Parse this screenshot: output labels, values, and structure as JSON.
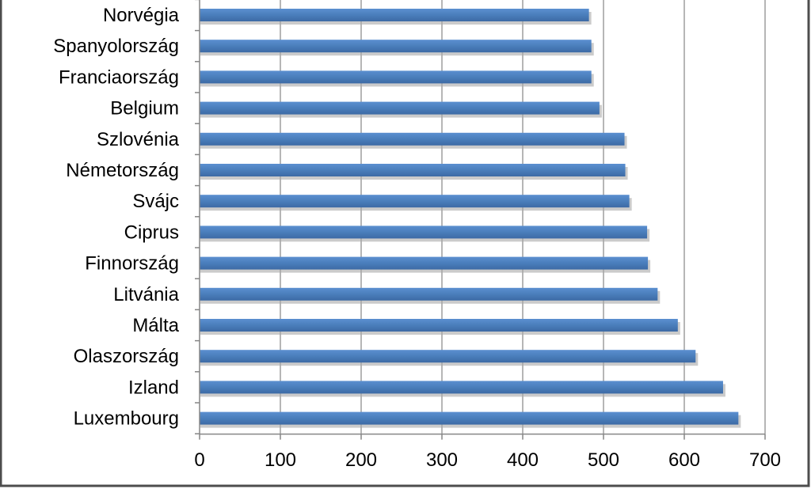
{
  "colors": {
    "bar": "#4a7ebb",
    "bar_shadow": "#a8a8a8",
    "grid": "#868686",
    "axis": "#868686",
    "frame": "#4d4d4d"
  },
  "chart_data": {
    "type": "bar",
    "orientation": "horizontal",
    "title": "",
    "xlabel": "",
    "ylabel": "",
    "xlim": [
      0,
      700
    ],
    "grid": true,
    "legend": "none",
    "categories": [
      "Norvégia",
      "Spanyolország",
      "Franciaország",
      "Belgium",
      "Szlovénia",
      "Németország",
      "Svájc",
      "Ciprus",
      "Finnország",
      "Litvánia",
      "Málta",
      "Olaszország",
      "Izland",
      "Luxembourg"
    ],
    "values": [
      482,
      485,
      485,
      495,
      526,
      527,
      532,
      554,
      555,
      567,
      592,
      614,
      648,
      667
    ],
    "ticks": [
      "0",
      "100",
      "200",
      "300",
      "400",
      "500",
      "600",
      "700"
    ]
  }
}
